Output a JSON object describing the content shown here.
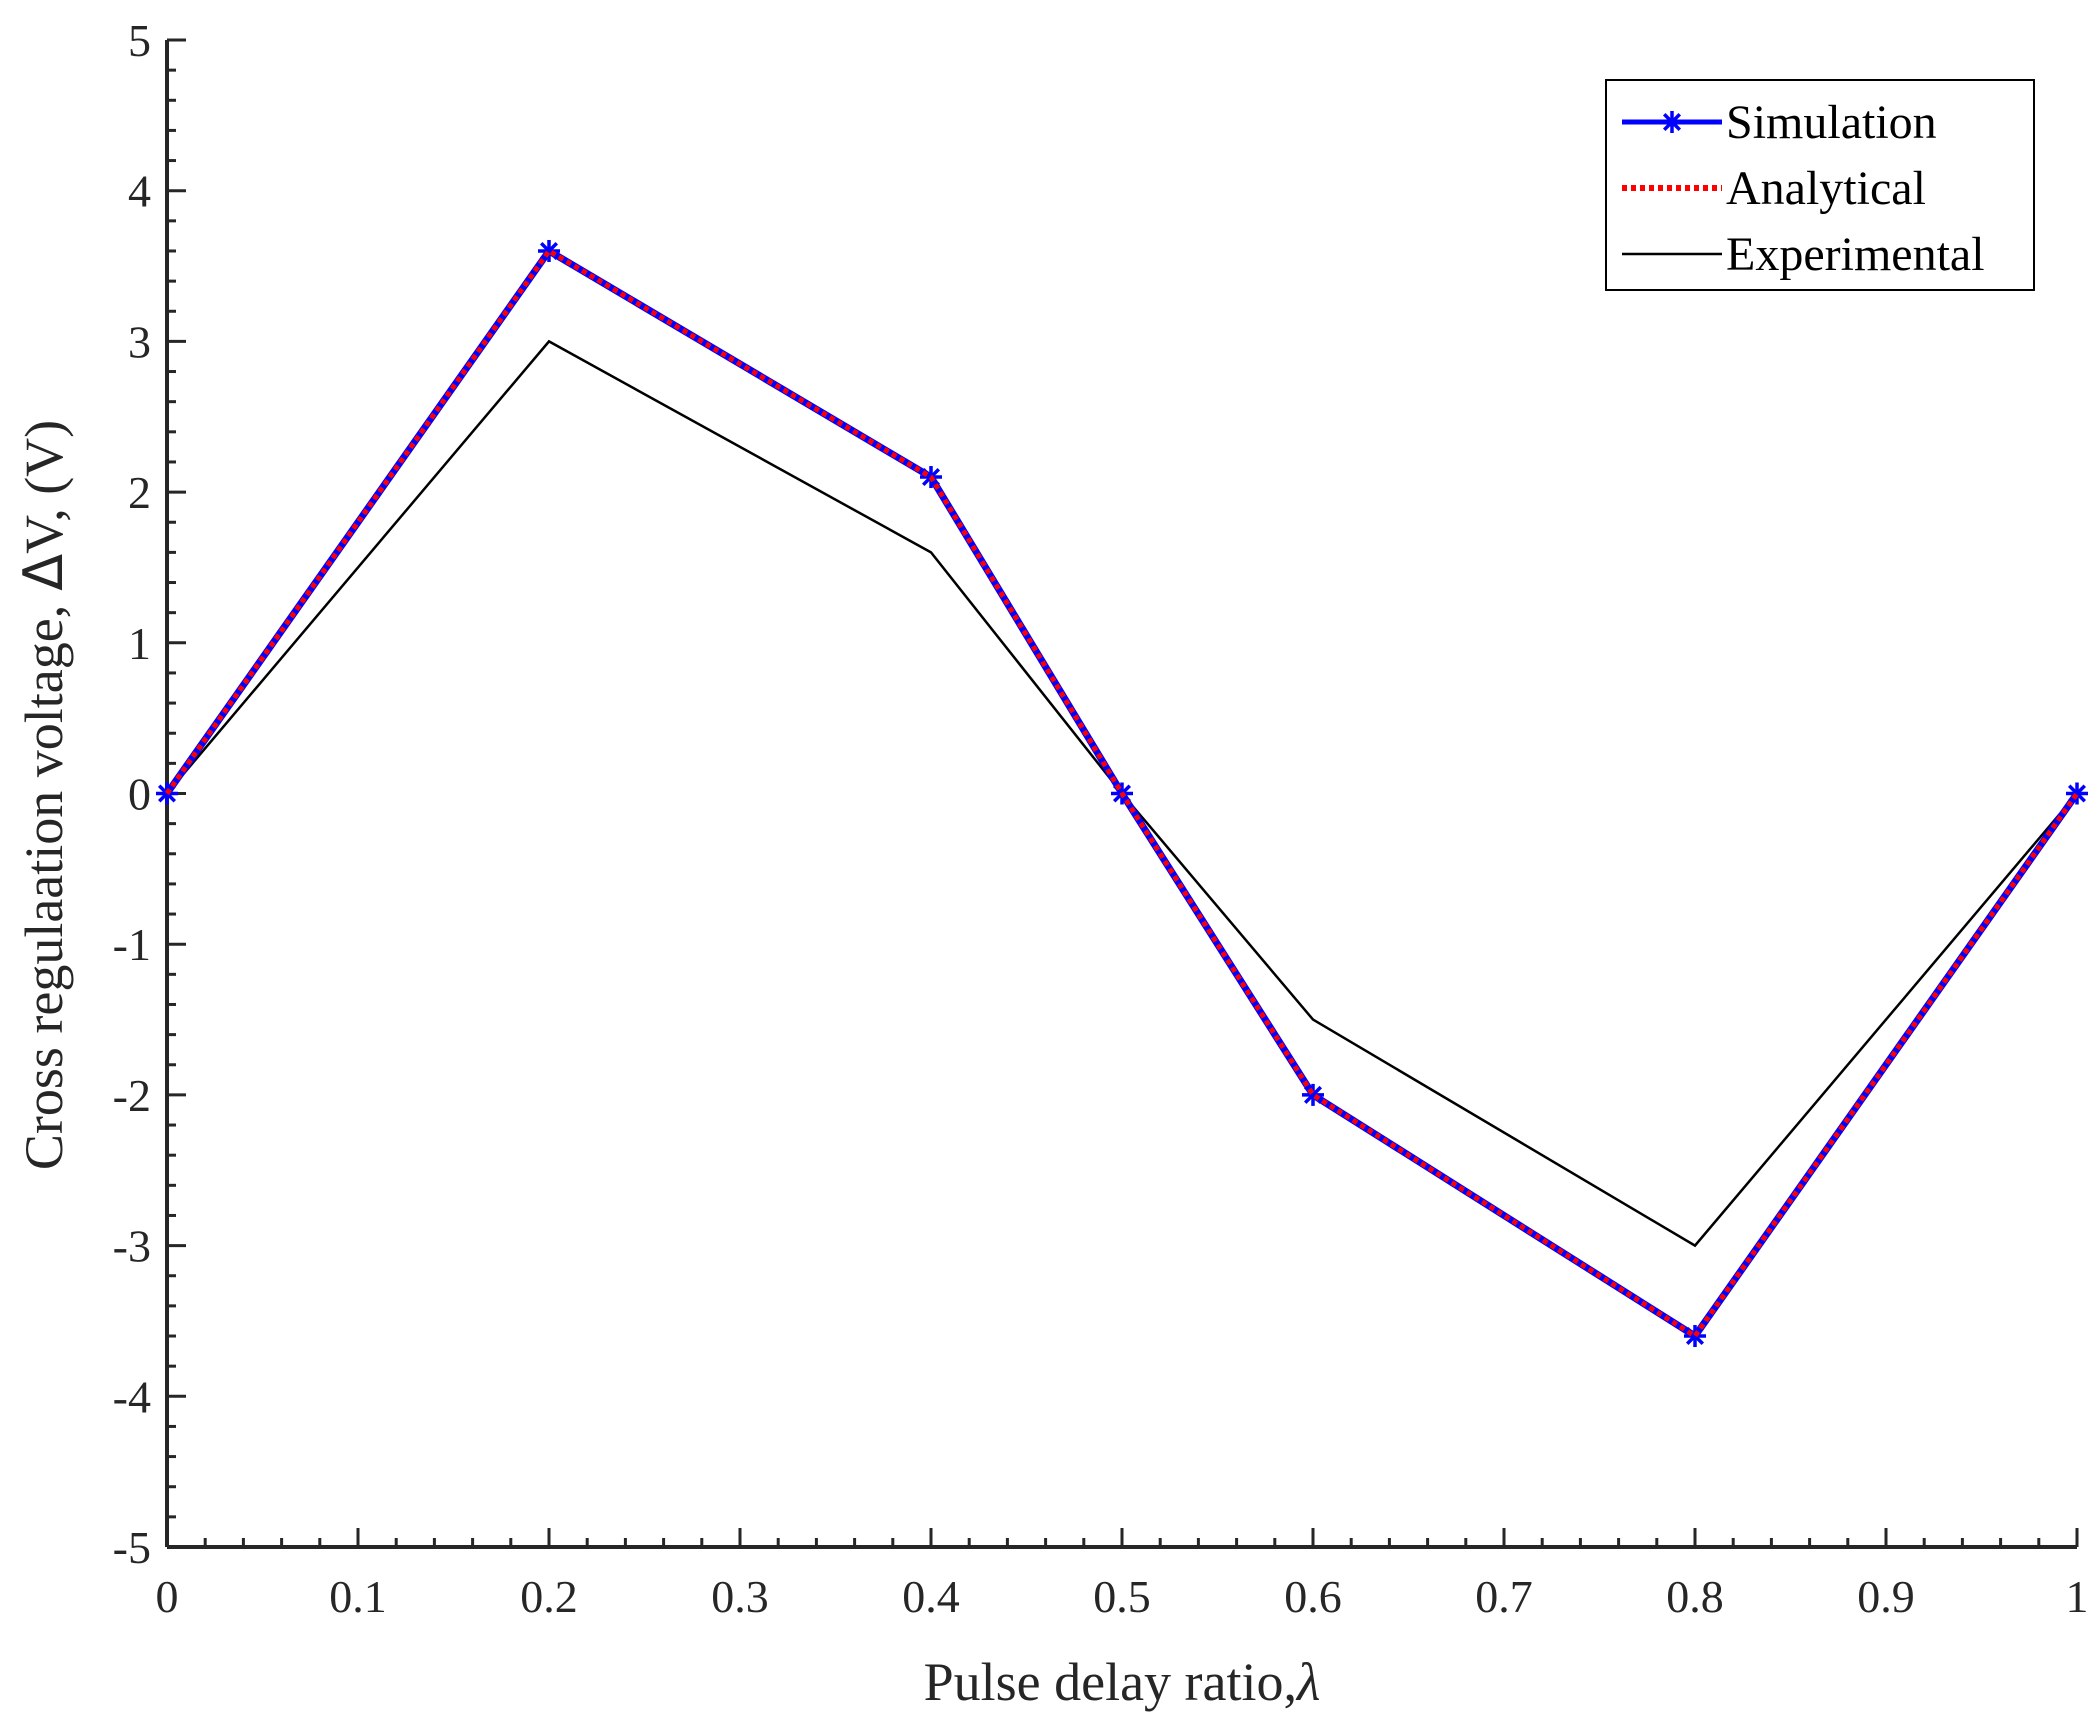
{
  "chart_data": {
    "type": "line",
    "title": "",
    "xlabel": "Pulse delay ratio,",
    "xlabel_symbol": "λ",
    "ylabel": "Cross regulaation voltage,",
    "ylabel_symbol": "Δ",
    "ylabel_unit": "V, (V)",
    "xlim": [
      0,
      1
    ],
    "ylim": [
      -5,
      5
    ],
    "xticks": [
      {
        "value": 0,
        "label": "0"
      },
      {
        "value": 0.1,
        "label": "0.1"
      },
      {
        "value": 0.2,
        "label": "0.2"
      },
      {
        "value": 0.3,
        "label": "0.3"
      },
      {
        "value": 0.4,
        "label": "0.4"
      },
      {
        "value": 0.5,
        "label": "0.5"
      },
      {
        "value": 0.6,
        "label": "0.6"
      },
      {
        "value": 0.7,
        "label": "0.7"
      },
      {
        "value": 0.8,
        "label": "0.8"
      },
      {
        "value": 0.9,
        "label": "0.9"
      },
      {
        "value": 1,
        "label": "1"
      }
    ],
    "yticks": [
      {
        "value": 5,
        "label": "5"
      },
      {
        "value": 4,
        "label": "4"
      },
      {
        "value": 3,
        "label": "3"
      },
      {
        "value": 2,
        "label": "2"
      },
      {
        "value": 1,
        "label": "1"
      },
      {
        "value": 0,
        "label": "0"
      },
      {
        "value": -1,
        "label": "-1"
      },
      {
        "value": -2,
        "label": "-2"
      },
      {
        "value": -3,
        "label": "-3"
      },
      {
        "value": -4,
        "label": "-4"
      },
      {
        "value": -5,
        "label": "-5"
      }
    ],
    "grid": false,
    "legend_position": "top-right",
    "series": [
      {
        "name": "Simulation",
        "color": "#0000ff",
        "style": "solid",
        "marker": "asterisk",
        "x": [
          0,
          0.2,
          0.4,
          0.5,
          0.6,
          0.8,
          1
        ],
        "y": [
          0,
          3.6,
          2.1,
          0,
          -2,
          -3.6,
          0
        ]
      },
      {
        "name": "Analytical",
        "color": "#ff0000",
        "style": "dotted",
        "marker": "none",
        "x": [
          0,
          0.2,
          0.4,
          0.5,
          0.6,
          0.8,
          1
        ],
        "y": [
          0,
          3.6,
          2.1,
          0,
          -2,
          -3.6,
          0
        ]
      },
      {
        "name": "Experimental",
        "color": "#000000",
        "style": "solid",
        "marker": "none",
        "x": [
          0,
          0.2,
          0.4,
          0.5,
          0.6,
          0.8,
          1
        ],
        "y": [
          0,
          3,
          1.6,
          0,
          -1.5,
          -3,
          0
        ]
      }
    ]
  }
}
